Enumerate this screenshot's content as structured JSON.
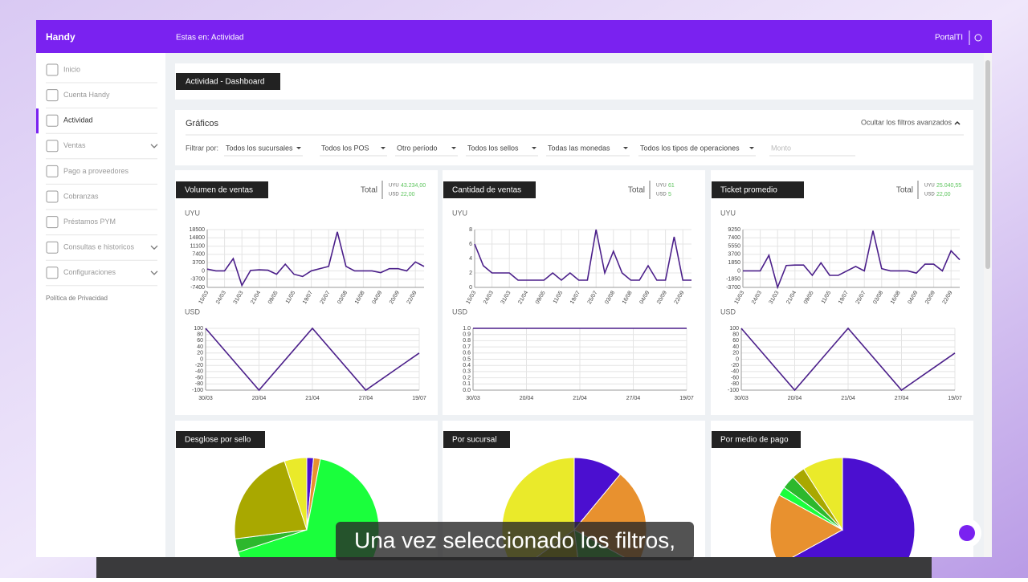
{
  "header": {
    "brand": "Handy",
    "breadcrumb": "Estas en: Actividad",
    "user": "PortalTI"
  },
  "sidebar": {
    "items": [
      "Inicio",
      "Cuenta Handy",
      "Actividad",
      "Ventas",
      "Pago a proveedores",
      "Cobranzas",
      "Préstamos PYM",
      "Consultas e historicos",
      "Configuraciones"
    ],
    "active": 2,
    "footer": "Política de Privacidad"
  },
  "dashboard_title": "Actividad - Dashboard",
  "filters": {
    "title": "Gráficos",
    "toggle": "Ocultar los filtros avanzados",
    "label": "Filtrar por:",
    "options": [
      "Todos los sucursales",
      "Todos los POS",
      "Otro período",
      "Todos los sellos",
      "Todas las monedas",
      "Todos los tipos de operaciones"
    ],
    "placeholder": "Monto"
  },
  "line_panels": [
    {
      "title": "Volumen de ventas",
      "total_label": "Total",
      "totals": [
        {
          "currency": "UYU",
          "amount": "43.234,00"
        },
        {
          "currency": "USD",
          "amount": "22,00"
        }
      ],
      "top": {
        "type": "line",
        "axis_label": "UYU",
        "color": "#4b1f8a",
        "categories": [
          "15/03",
          null,
          "24/03",
          null,
          "31/03",
          null,
          "21/04",
          null,
          "09/05",
          null,
          "11/05",
          null,
          "19/07",
          null,
          "25/07",
          null,
          "03/08",
          null,
          "16/08",
          null,
          "04/09",
          null,
          "20/09",
          null,
          "22/09",
          null
        ],
        "values": [
          800,
          0,
          0,
          5500,
          -6500,
          200,
          500,
          300,
          -1500,
          3000,
          -1500,
          -2500,
          0,
          1000,
          2000,
          17500,
          2000,
          0,
          0,
          0,
          -800,
          1000,
          1000,
          0,
          4000,
          2000
        ],
        "ylim": [
          -7400,
          18500
        ],
        "yticks": [
          18500,
          14800,
          11100,
          7400,
          3700,
          0,
          -3700,
          -7400
        ]
      },
      "bottom": {
        "type": "line",
        "axis_label": "USD",
        "color": "#4b1f8a",
        "categories": [
          "30/03",
          "20/04",
          "21/04",
          "27/04",
          "19/07"
        ],
        "values": [
          100,
          -100,
          100,
          -100,
          20
        ],
        "ylim": [
          -100,
          100
        ],
        "yticks": [
          100,
          80,
          60,
          40,
          20,
          0,
          -20,
          -40,
          -60,
          -80,
          -100
        ]
      }
    },
    {
      "title": "Cantidad de ventas",
      "total_label": "Total",
      "totals": [
        {
          "currency": "UYU",
          "amount": "61"
        },
        {
          "currency": "USD",
          "amount": "5"
        }
      ],
      "top": {
        "type": "line",
        "axis_label": "UYU",
        "color": "#4b1f8a",
        "categories": [
          "15/03",
          null,
          "24/03",
          null,
          "31/03",
          null,
          "21/04",
          null,
          "09/05",
          null,
          "11/05",
          null,
          "19/07",
          null,
          "25/07",
          null,
          "03/08",
          null,
          "16/08",
          null,
          "04/09",
          null,
          "20/09",
          null,
          "22/09",
          null
        ],
        "values": [
          6,
          3,
          2,
          2,
          2,
          1,
          1,
          1,
          1,
          2,
          1,
          2,
          1,
          1,
          8,
          2,
          5,
          2,
          1,
          1,
          3,
          1,
          1,
          7,
          1,
          1
        ],
        "ylim": [
          0,
          8
        ],
        "yticks": [
          8,
          6,
          4,
          2,
          0
        ]
      },
      "bottom": {
        "type": "line",
        "axis_label": "USD",
        "color": "#4b1f8a",
        "categories": [
          "30/03",
          "20/04",
          "21/04",
          "27/04",
          "19/07"
        ],
        "values": [
          1,
          1,
          1,
          1,
          1
        ],
        "ylim": [
          0,
          1
        ],
        "yticks": [
          {
            "value": 1,
            "label": "1.0"
          },
          0.9,
          0.8,
          0.7,
          0.6,
          0.5,
          0.4,
          0.3,
          0.2,
          0.1,
          {
            "value": 0,
            "label": "0.0"
          }
        ]
      }
    },
    {
      "title": "Ticket promedio",
      "total_label": "Total",
      "totals": [
        {
          "currency": "UYU",
          "amount": "25.040,55"
        },
        {
          "currency": "USD",
          "amount": "22,00"
        }
      ],
      "top": {
        "type": "line",
        "axis_label": "UYU",
        "color": "#4b1f8a",
        "categories": [
          "15/03",
          null,
          "24/03",
          null,
          "31/03",
          null,
          "21/04",
          null,
          "09/05",
          null,
          "11/05",
          null,
          "19/07",
          null,
          "25/07",
          null,
          "03/08",
          null,
          "16/08",
          null,
          "04/09",
          null,
          "20/09",
          null,
          "22/09",
          null
        ],
        "values": [
          0,
          0,
          0,
          3500,
          -3700,
          1200,
          1300,
          1300,
          -1000,
          1800,
          -1000,
          -1000,
          0,
          1000,
          0,
          9000,
          500,
          0,
          0,
          0,
          -500,
          1500,
          1500,
          0,
          4500,
          2500
        ],
        "ylim": [
          -3700,
          9250
        ],
        "yticks": [
          9250,
          7400,
          5550,
          3700,
          1850,
          0,
          -1850,
          -3700
        ]
      },
      "bottom": {
        "type": "line",
        "axis_label": "USD",
        "color": "#4b1f8a",
        "categories": [
          "30/03",
          "20/04",
          "21/04",
          "27/04",
          "19/07"
        ],
        "values": [
          100,
          -100,
          100,
          -100,
          20
        ],
        "ylim": [
          -100,
          100
        ],
        "yticks": [
          100,
          80,
          60,
          40,
          20,
          0,
          -20,
          -40,
          -60,
          -80,
          -100
        ]
      }
    }
  ],
  "pie_panels": [
    {
      "type": "pie",
      "title": "Desglose por sello",
      "values": [
        1.5,
        1.5,
        67,
        3,
        22,
        5
      ],
      "colors": [
        "#4b0fd0",
        "#e8912f",
        "#1aff3c",
        "#2db82d",
        "#a9a800",
        "#eaea2a"
      ]
    },
    {
      "type": "pie",
      "title": "Por sucursal",
      "values": [
        11,
        22,
        15,
        17,
        35
      ],
      "colors": [
        "#4b0fd0",
        "#e8912f",
        "#2db82d",
        "#a9a800",
        "#eaea2a"
      ]
    },
    {
      "type": "pie",
      "title": "Por medio de pago",
      "values": [
        67,
        16,
        2,
        3,
        3,
        9
      ],
      "colors": [
        "#4b0fd0",
        "#e8912f",
        "#1aff3c",
        "#2db82d",
        "#a9a800",
        "#eaea2a"
      ]
    }
  ],
  "caption": "Una vez seleccionado los filtros,"
}
